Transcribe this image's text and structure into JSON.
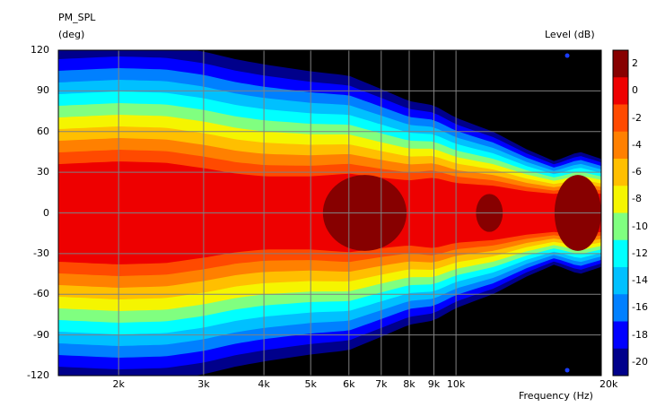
{
  "chart_data": {
    "type": "heatmap",
    "title": "PM_SPL",
    "ylabel": "(deg)",
    "xlabel": "Frequency  (Hz)",
    "colorbar_label": "Level  (dB)",
    "x_scale": "log",
    "xlim": [
      1500,
      20000
    ],
    "ylim": [
      -120,
      120
    ],
    "x_ticks": [
      {
        "value": 2000,
        "label": "2k"
      },
      {
        "value": 3000,
        "label": "3k"
      },
      {
        "value": 4000,
        "label": "4k"
      },
      {
        "value": 5000,
        "label": "5k"
      },
      {
        "value": 6000,
        "label": "6k"
      },
      {
        "value": 7000,
        "label": "7k"
      },
      {
        "value": 8000,
        "label": "8k"
      },
      {
        "value": 9000,
        "label": "9k"
      },
      {
        "value": 10000,
        "label": "10k"
      },
      {
        "value": 20000,
        "label": "20k"
      }
    ],
    "y_ticks": [
      {
        "value": 120,
        "label": "120"
      },
      {
        "value": 90,
        "label": "90"
      },
      {
        "value": 60,
        "label": "60"
      },
      {
        "value": 30,
        "label": "30"
      },
      {
        "value": 0,
        "label": "0"
      },
      {
        "value": -30,
        "label": "-30"
      },
      {
        "value": -60,
        "label": "-60"
      },
      {
        "value": -90,
        "label": "-90"
      },
      {
        "value": -120,
        "label": "-120"
      }
    ],
    "colorbar": [
      {
        "value": 2,
        "label": "2",
        "color": "#870000"
      },
      {
        "value": 0,
        "label": "0",
        "color": "#ee0000"
      },
      {
        "value": -2,
        "label": "-2",
        "color": "#ff4a00"
      },
      {
        "value": -4,
        "label": "-4",
        "color": "#ff8000"
      },
      {
        "value": -6,
        "label": "-6",
        "color": "#ffbf00"
      },
      {
        "value": -8,
        "label": "-8",
        "color": "#f5f500"
      },
      {
        "value": -10,
        "label": "-10",
        "color": "#80ff80"
      },
      {
        "value": -12,
        "label": "-12",
        "color": "#00ffff"
      },
      {
        "value": -14,
        "label": "-14",
        "color": "#00c0ff"
      },
      {
        "value": -16,
        "label": "-16",
        "color": "#0080ff"
      },
      {
        "value": -18,
        "label": "-18",
        "color": "#0000ff"
      },
      {
        "value": -20,
        "label": "-20",
        "color": "#00008b"
      }
    ],
    "contour_profile": [
      {
        "freq": 1500,
        "beam_deg": 36,
        "spread": 1.0
      },
      {
        "freq": 2000,
        "beam_deg": 38,
        "spread": 1.0
      },
      {
        "freq": 2500,
        "beam_deg": 37,
        "spread": 1.0
      },
      {
        "freq": 3000,
        "beam_deg": 33,
        "spread": 1.0
      },
      {
        "freq": 3500,
        "beam_deg": 29,
        "spread": 0.98
      },
      {
        "freq": 4000,
        "beam_deg": 27,
        "spread": 0.96
      },
      {
        "freq": 5000,
        "beam_deg": 27,
        "spread": 0.9
      },
      {
        "freq": 6000,
        "beam_deg": 29,
        "spread": 0.84
      },
      {
        "freq": 7000,
        "beam_deg": 26,
        "spread": 0.76
      },
      {
        "freq": 8000,
        "beam_deg": 24,
        "spread": 0.68
      },
      {
        "freq": 9000,
        "beam_deg": 26,
        "spread": 0.62
      },
      {
        "freq": 10000,
        "beam_deg": 22,
        "spread": 0.56
      },
      {
        "freq": 12000,
        "beam_deg": 20,
        "spread": 0.46
      },
      {
        "freq": 14000,
        "beam_deg": 16,
        "spread": 0.36
      },
      {
        "freq": 16000,
        "beam_deg": 14,
        "spread": 0.28
      },
      {
        "freq": 18000,
        "beam_deg": 16,
        "spread": 0.34
      },
      {
        "freq": 20000,
        "beam_deg": 14,
        "spread": 0.3
      }
    ],
    "peak_regions": [
      {
        "freq_range": [
          5300,
          7900
        ],
        "deg_range": [
          -28,
          28
        ]
      },
      {
        "freq_range": [
          11000,
          12500
        ],
        "deg_range": [
          -14,
          14
        ]
      },
      {
        "freq_range": [
          16000,
          20000
        ],
        "deg_range": [
          -28,
          28
        ]
      }
    ],
    "markers": [
      {
        "freq": 17000,
        "deg": 116
      },
      {
        "freq": 17000,
        "deg": -116
      }
    ],
    "grid": true
  }
}
